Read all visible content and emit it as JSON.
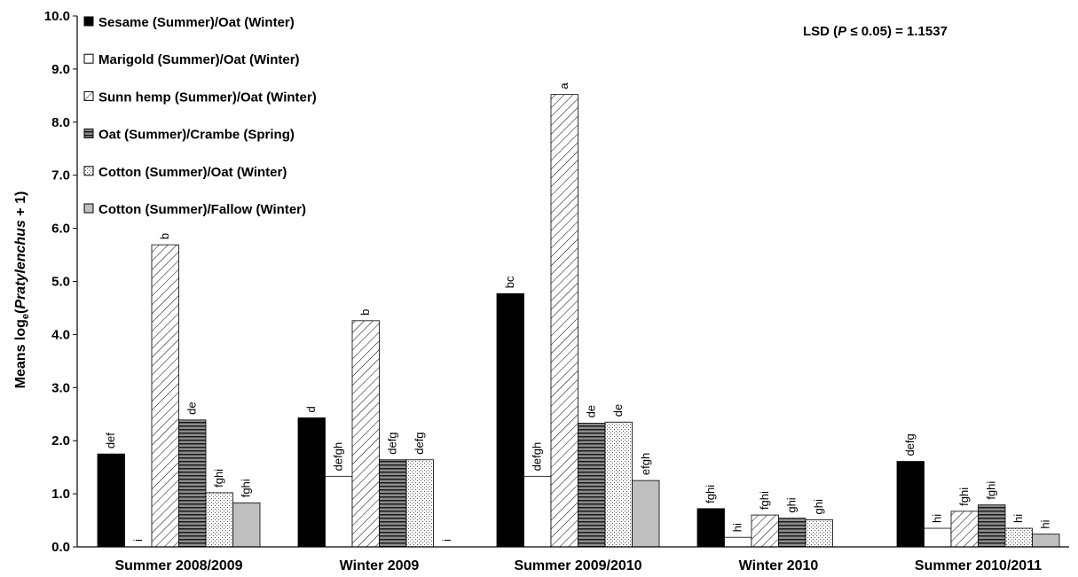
{
  "chart_data": {
    "type": "bar",
    "ylabel_prefix": "Means log",
    "ylabel_sub": "e",
    "ylabel_open": "(",
    "ylabel_italic": "Pratylenchus",
    "ylabel_suffix": " + 1)",
    "ylim": [
      0,
      10
    ],
    "yticks": [
      "0.0",
      "1.0",
      "2.0",
      "3.0",
      "4.0",
      "5.0",
      "6.0",
      "7.0",
      "8.0",
      "9.0",
      "10.0"
    ],
    "categories": [
      "Summer 2008/2009",
      "Winter 2009",
      "Summer 2009/2010",
      "Winter 2010",
      "Summer 2010/2011"
    ],
    "legend_position": "top-left",
    "annotation": {
      "prefix": "LSD  (",
      "italic": "P",
      "suffix": " ≤ 0.05) = 1.1537"
    },
    "series": [
      {
        "name": "Sesame (Summer)/Oat (Winter)",
        "pattern": "solid-black",
        "values": [
          1.75,
          2.43,
          4.77,
          0.72,
          1.61
        ],
        "labels": [
          "def",
          "d",
          "bc",
          "fghi",
          "defg"
        ]
      },
      {
        "name": "Marigold (Summer)/Oat (Winter)",
        "pattern": "white",
        "values": [
          0.0,
          1.33,
          1.33,
          0.18,
          0.35
        ],
        "labels": [
          "i",
          "defgh",
          "defgh",
          "hi",
          "hi"
        ]
      },
      {
        "name": "Sunn hemp (Summer)/Oat (Winter)",
        "pattern": "diagonal",
        "values": [
          5.69,
          4.26,
          8.52,
          0.6,
          0.67
        ],
        "labels": [
          "b",
          "b",
          "a",
          "fghi",
          "fghi"
        ]
      },
      {
        "name": "Oat (Summer)/Crambe (Spring)",
        "pattern": "horizontal",
        "values": [
          2.39,
          1.64,
          2.33,
          0.54,
          0.79
        ],
        "labels": [
          "de",
          "defg",
          "de",
          "ghi",
          "fghi"
        ]
      },
      {
        "name": "Cotton (Summer)/Oat (Winter)",
        "pattern": "dotted",
        "values": [
          1.02,
          1.64,
          2.35,
          0.51,
          0.35
        ],
        "labels": [
          "fghi",
          "defg",
          "de",
          "ghi",
          "hi"
        ]
      },
      {
        "name": "Cotton (Summer)/Fallow (Winter)",
        "pattern": "gray",
        "values": [
          0.83,
          0.0,
          1.25,
          0.0,
          0.24
        ],
        "labels": [
          "fghi",
          "i",
          "efgh",
          "",
          "hi"
        ]
      }
    ]
  }
}
